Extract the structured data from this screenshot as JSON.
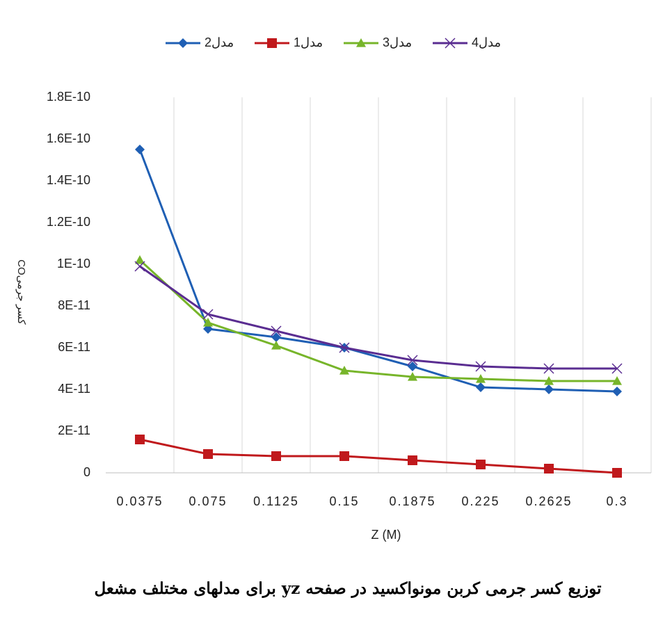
{
  "chart_data": {
    "type": "line",
    "title": "توزیع کسر جرمی کربن مونواکسید در صفحه yz برای مدلهای مختلف مشعل",
    "x_label": "Z (M)",
    "y_label": "COکسر جرمی",
    "categories": [
      "0.0375",
      "0.075",
      "0.1125",
      "0.15",
      "0.1875",
      "0.225",
      "0.2625",
      "0.3"
    ],
    "ylim": [
      0,
      1.8e-10
    ],
    "yticks": [
      0,
      {
        "value": 2e-11,
        "label": "2E-11"
      },
      {
        "value": 4e-11,
        "label": "4E-11"
      },
      {
        "value": 6e-11,
        "label": "6E-11"
      },
      {
        "value": 8e-11,
        "label": "8E-11"
      },
      {
        "value": 1e-10,
        "label": "1E-10"
      },
      {
        "value": 1.2e-10,
        "label": "1.2E-10"
      },
      {
        "value": 1.4e-10,
        "label": "1.4E-10"
      },
      {
        "value": 1.6e-10,
        "label": "1.6E-10"
      },
      {
        "value": 1.8e-10,
        "label": "1.8E-10"
      }
    ],
    "grid": "x",
    "legend": "top",
    "series": [
      {
        "name": "مدل2",
        "color": "#1f5fb4",
        "marker": "diamond",
        "values": [
          1.55e-10,
          6.9e-11,
          6.5e-11,
          6e-11,
          5.1e-11,
          4.1e-11,
          4e-11,
          3.9e-11
        ]
      },
      {
        "name": "مدل1",
        "color": "#c0191c",
        "marker": "square",
        "values": [
          1.6e-11,
          9e-12,
          8e-12,
          8e-12,
          6e-12,
          4e-12,
          2e-12,
          0
        ]
      },
      {
        "name": "مدل3",
        "color": "#77b52a",
        "marker": "triangle",
        "values": [
          1.02e-10,
          7.2e-11,
          6.1e-11,
          4.9e-11,
          4.6e-11,
          4.5e-11,
          4.4e-11,
          4.4e-11
        ]
      },
      {
        "name": "مدل4",
        "color": "#5a2d91",
        "marker": "x",
        "values": [
          9.9e-11,
          7.6e-11,
          6.8e-11,
          6e-11,
          5.4e-11,
          5.1e-11,
          5e-11,
          5e-11
        ]
      }
    ]
  }
}
